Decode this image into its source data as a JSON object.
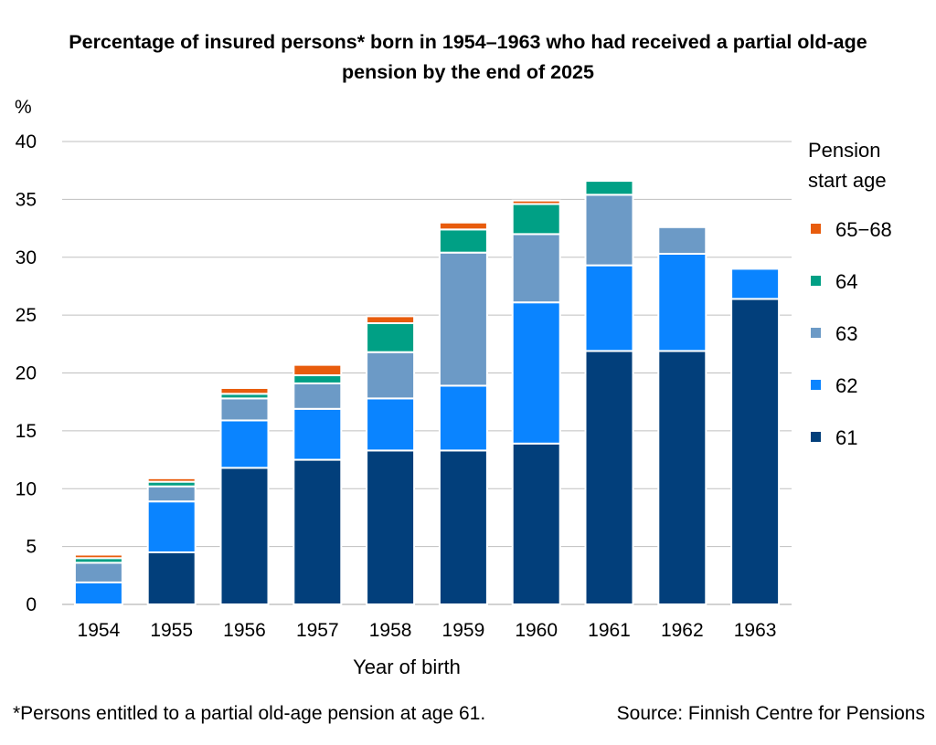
{
  "chart_data": {
    "type": "bar",
    "stacked": true,
    "title_line1": "Percentage of insured persons* born in 1954–1963 who had received a partial old-age",
    "title_line2": "pension by the end of 2025",
    "ylabel": "%",
    "xlabel": "Year of birth",
    "ylim": [
      0,
      40
    ],
    "yticks": [
      0,
      5,
      10,
      15,
      20,
      25,
      30,
      35,
      40
    ],
    "grid": true,
    "legend_title_line1": "Pension",
    "legend_title_line2": "start age",
    "legend_position": "right",
    "categories": [
      "1954",
      "1955",
      "1956",
      "1957",
      "1958",
      "1959",
      "1960",
      "1961",
      "1962",
      "1963"
    ],
    "series": [
      {
        "name": "61",
        "color": "#023F7B",
        "values": [
          0,
          4.5,
          11.8,
          12.5,
          13.3,
          13.3,
          13.9,
          21.9,
          21.9,
          26.4
        ]
      },
      {
        "name": "62",
        "color": "#0A84FF",
        "values": [
          1.9,
          4.4,
          4.1,
          4.4,
          4.5,
          5.6,
          12.2,
          7.4,
          8.4,
          2.6
        ]
      },
      {
        "name": "63",
        "color": "#6C9AC6",
        "values": [
          1.7,
          1.3,
          1.9,
          2.2,
          4.0,
          11.5,
          5.9,
          6.1,
          2.3,
          0
        ]
      },
      {
        "name": "64",
        "color": "#00A085",
        "values": [
          0.4,
          0.4,
          0.4,
          0.7,
          2.5,
          2.0,
          2.6,
          1.2,
          0,
          0
        ]
      },
      {
        "name": "65−68",
        "color": "#E85C0D",
        "values": [
          0.3,
          0.3,
          0.5,
          0.9,
          0.6,
          0.6,
          0.3,
          0,
          0,
          0
        ]
      }
    ]
  },
  "footnote": "*Persons entitled to a partial old-age pension at age 61.",
  "source": "Source: Finnish Centre for Pensions"
}
